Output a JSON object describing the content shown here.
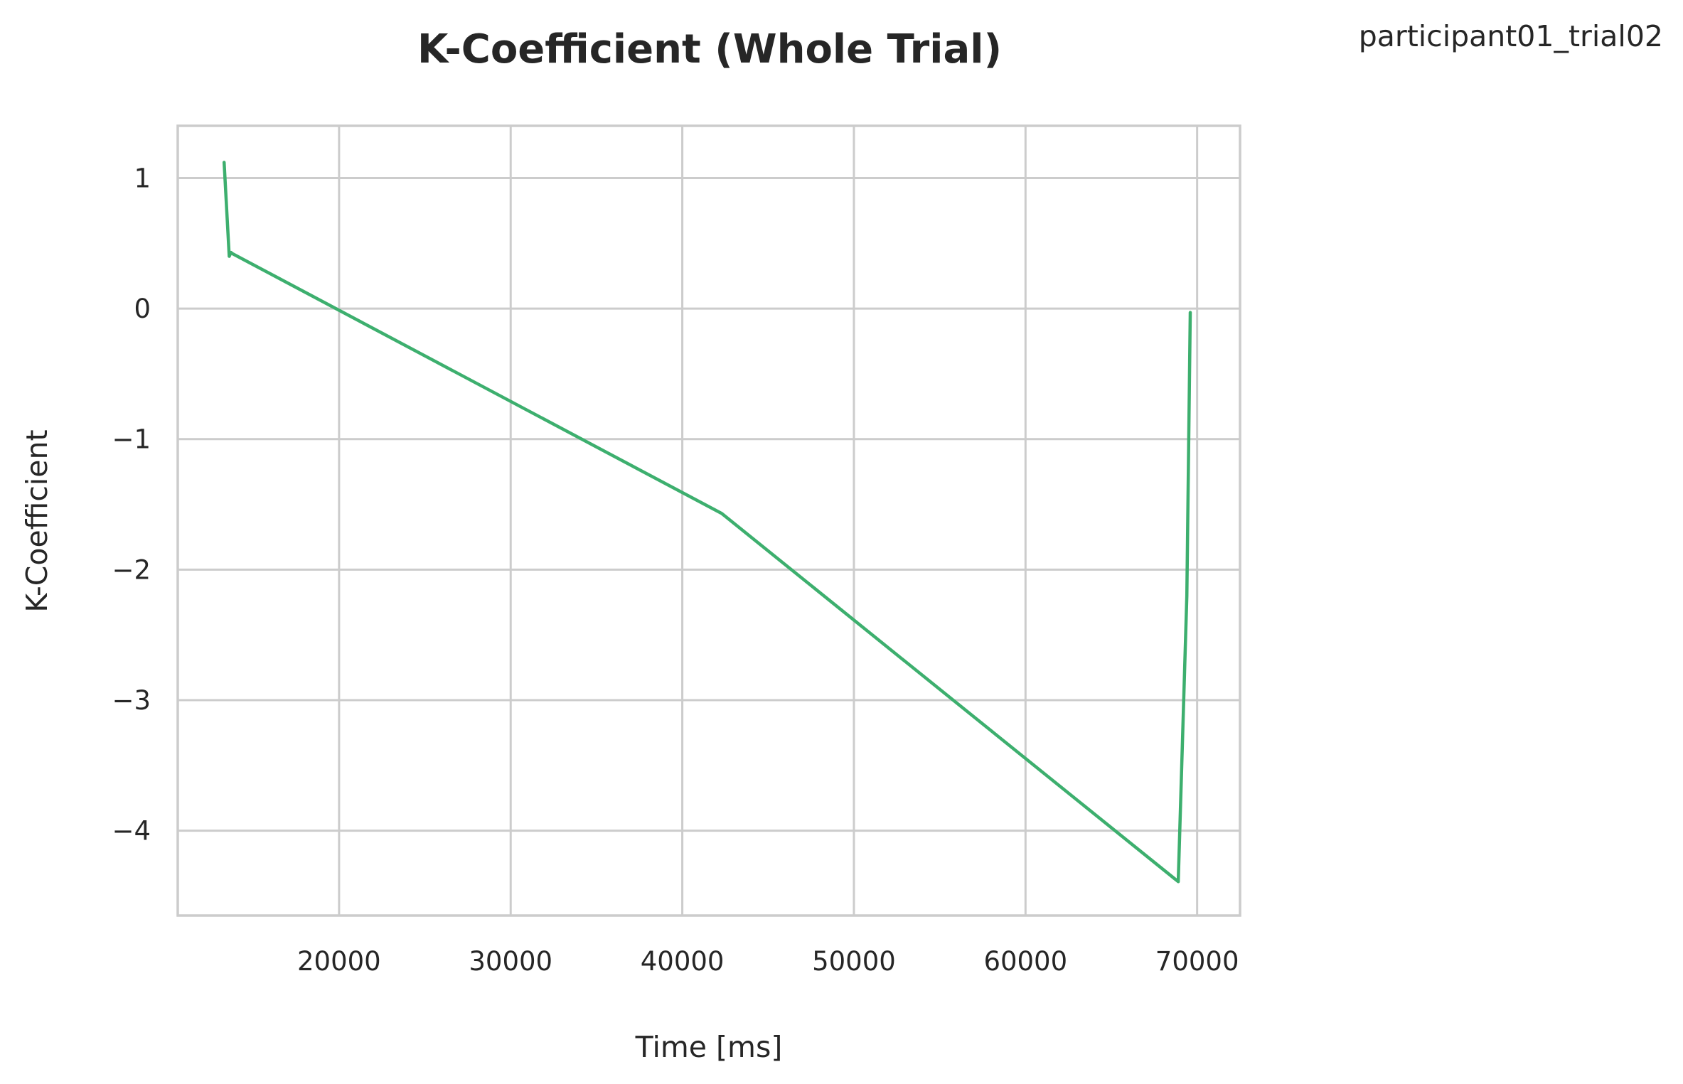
{
  "figure": {
    "corner_label": "participant01_trial02"
  },
  "chart_data": {
    "type": "line",
    "title": "K-Coefficient (Whole Trial)",
    "xlabel": "Time [ms]",
    "ylabel": "K-Coefficient",
    "xlim": [
      10600,
      72500
    ],
    "ylim": [
      -4.65,
      1.4
    ],
    "xticks": [
      20000,
      30000,
      40000,
      50000,
      60000,
      70000
    ],
    "xtick_labels": [
      "20000",
      "30000",
      "40000",
      "50000",
      "60000",
      "70000"
    ],
    "yticks": [
      1,
      0,
      -1,
      -2,
      -3,
      -4
    ],
    "ytick_labels": [
      "1",
      "0",
      "−1",
      "−2",
      "−3",
      "−4"
    ],
    "grid": true,
    "legend": false,
    "series": [
      {
        "color": "#3daf6e",
        "x": [
          13300,
          13600,
          13700,
          13800,
          42300,
          68900,
          69400,
          69600
        ],
        "y": [
          1.12,
          0.4,
          0.43,
          0.42,
          -1.57,
          -4.39,
          -2.2,
          -0.03
        ]
      }
    ]
  }
}
